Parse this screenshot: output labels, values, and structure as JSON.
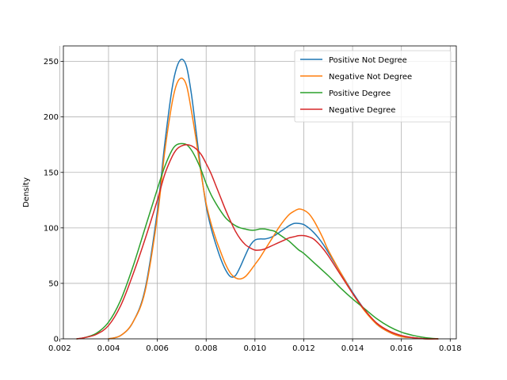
{
  "chart_data": {
    "type": "line",
    "title": "",
    "xlabel": "",
    "ylabel": "Density",
    "xlim": [
      0.00215,
      0.01825
    ],
    "ylim": [
      0,
      264
    ],
    "grid": true,
    "legend_position": "top-right",
    "x_ticks": [
      {
        "value": 0.002,
        "label": "0.002"
      },
      {
        "value": 0.004,
        "label": "0.004"
      },
      {
        "value": 0.006,
        "label": "0.006"
      },
      {
        "value": 0.008,
        "label": "0.008"
      },
      {
        "value": 0.01,
        "label": "0.010"
      },
      {
        "value": 0.012,
        "label": "0.012"
      },
      {
        "value": 0.014,
        "label": "0.014"
      },
      {
        "value": 0.016,
        "label": "0.016"
      },
      {
        "value": 0.018,
        "label": "0.018"
      }
    ],
    "y_ticks": [
      {
        "value": 0,
        "label": "0"
      },
      {
        "value": 50,
        "label": "50"
      },
      {
        "value": 100,
        "label": "100"
      },
      {
        "value": 150,
        "label": "150"
      },
      {
        "value": 200,
        "label": "200"
      },
      {
        "value": 250,
        "label": "250"
      }
    ],
    "series": [
      {
        "name": "Positive Not Degree",
        "color": "#1f77b4",
        "x": [
          0.004,
          0.0045,
          0.005,
          0.0055,
          0.006,
          0.0063,
          0.0066,
          0.0068,
          0.007,
          0.0072,
          0.0074,
          0.0076,
          0.0078,
          0.008,
          0.0082,
          0.0084,
          0.0086,
          0.0088,
          0.009,
          0.0092,
          0.0094,
          0.0096,
          0.0098,
          0.01,
          0.0102,
          0.0104,
          0.0106,
          0.0108,
          0.011,
          0.0112,
          0.0114,
          0.0116,
          0.0118,
          0.012,
          0.0122,
          0.0124,
          0.0126,
          0.0128,
          0.013,
          0.0135,
          0.014,
          0.0145,
          0.015,
          0.0155,
          0.016,
          0.0165,
          0.017,
          0.0175
        ],
        "y": [
          0,
          3,
          15,
          45,
          115,
          175,
          225,
          245,
          252,
          245,
          220,
          185,
          150,
          120,
          100,
          85,
          72,
          62,
          56,
          57,
          65,
          75,
          84,
          89,
          90,
          90,
          91,
          93,
          96,
          99,
          102,
          104,
          104,
          103,
          100,
          96,
          91,
          85,
          78,
          60,
          42,
          26,
          13,
          6,
          2,
          1,
          0,
          0
        ]
      },
      {
        "name": "Negative Not Degree",
        "color": "#ff7f0e",
        "x": [
          0.004,
          0.0045,
          0.005,
          0.0055,
          0.006,
          0.0063,
          0.0066,
          0.0068,
          0.007,
          0.0072,
          0.0074,
          0.0076,
          0.0078,
          0.008,
          0.0082,
          0.0084,
          0.0086,
          0.0088,
          0.009,
          0.0092,
          0.0094,
          0.0096,
          0.0098,
          0.01,
          0.0102,
          0.0104,
          0.0106,
          0.0108,
          0.011,
          0.0112,
          0.0114,
          0.0116,
          0.0118,
          0.012,
          0.0122,
          0.0124,
          0.0126,
          0.0128,
          0.013,
          0.0135,
          0.014,
          0.0145,
          0.015,
          0.0155,
          0.016,
          0.0165,
          0.017,
          0.0175
        ],
        "y": [
          0,
          3,
          15,
          43,
          110,
          168,
          212,
          230,
          235,
          228,
          205,
          178,
          148,
          122,
          104,
          90,
          78,
          67,
          59,
          55,
          54,
          56,
          61,
          67,
          73,
          80,
          87,
          94,
          101,
          107,
          112,
          115,
          117,
          116,
          113,
          107,
          99,
          90,
          80,
          60,
          41,
          25,
          13,
          6,
          2,
          1,
          0,
          0
        ]
      },
      {
        "name": "Positive Degree",
        "color": "#2ca02c",
        "x": [
          0.0027,
          0.003,
          0.0035,
          0.004,
          0.0045,
          0.005,
          0.0055,
          0.006,
          0.0063,
          0.0066,
          0.0068,
          0.007,
          0.0072,
          0.0074,
          0.0076,
          0.0078,
          0.008,
          0.0082,
          0.0084,
          0.0086,
          0.0088,
          0.009,
          0.0092,
          0.0094,
          0.0096,
          0.0098,
          0.01,
          0.0102,
          0.0104,
          0.0106,
          0.0108,
          0.011,
          0.0112,
          0.0114,
          0.0116,
          0.0118,
          0.012,
          0.0125,
          0.013,
          0.0135,
          0.014,
          0.0145,
          0.015,
          0.0155,
          0.016,
          0.0165,
          0.017,
          0.0175
        ],
        "y": [
          0,
          1,
          5,
          15,
          35,
          65,
          100,
          135,
          155,
          170,
          175,
          176,
          175,
          170,
          162,
          152,
          140,
          130,
          122,
          115,
          109,
          105,
          102,
          100,
          99,
          98,
          98,
          99,
          99,
          98,
          97,
          94,
          91,
          88,
          84,
          80,
          77,
          67,
          57,
          46,
          36,
          27,
          18,
          11,
          6,
          3,
          1,
          0
        ]
      },
      {
        "name": "Negative Degree",
        "color": "#d62728",
        "x": [
          0.0027,
          0.003,
          0.0035,
          0.004,
          0.0045,
          0.005,
          0.0055,
          0.006,
          0.0063,
          0.0066,
          0.0068,
          0.007,
          0.0072,
          0.0074,
          0.0076,
          0.0078,
          0.008,
          0.0082,
          0.0084,
          0.0086,
          0.0088,
          0.009,
          0.0092,
          0.0094,
          0.0096,
          0.0098,
          0.01,
          0.0102,
          0.0104,
          0.0106,
          0.0108,
          0.011,
          0.0112,
          0.0114,
          0.0116,
          0.0118,
          0.012,
          0.0122,
          0.0124,
          0.0126,
          0.0128,
          0.013,
          0.0135,
          0.014,
          0.0145,
          0.015,
          0.0155,
          0.016,
          0.0165,
          0.017,
          0.0175
        ],
        "y": [
          0,
          1,
          4,
          12,
          30,
          58,
          90,
          125,
          148,
          164,
          171,
          174,
          175,
          174,
          171,
          166,
          158,
          149,
          138,
          127,
          116,
          106,
          97,
          90,
          85,
          82,
          80,
          80,
          81,
          83,
          85,
          87,
          89,
          91,
          92,
          93,
          93,
          92,
          90,
          86,
          81,
          75,
          58,
          41,
          26,
          14,
          7,
          3,
          1,
          0,
          0
        ]
      }
    ]
  }
}
